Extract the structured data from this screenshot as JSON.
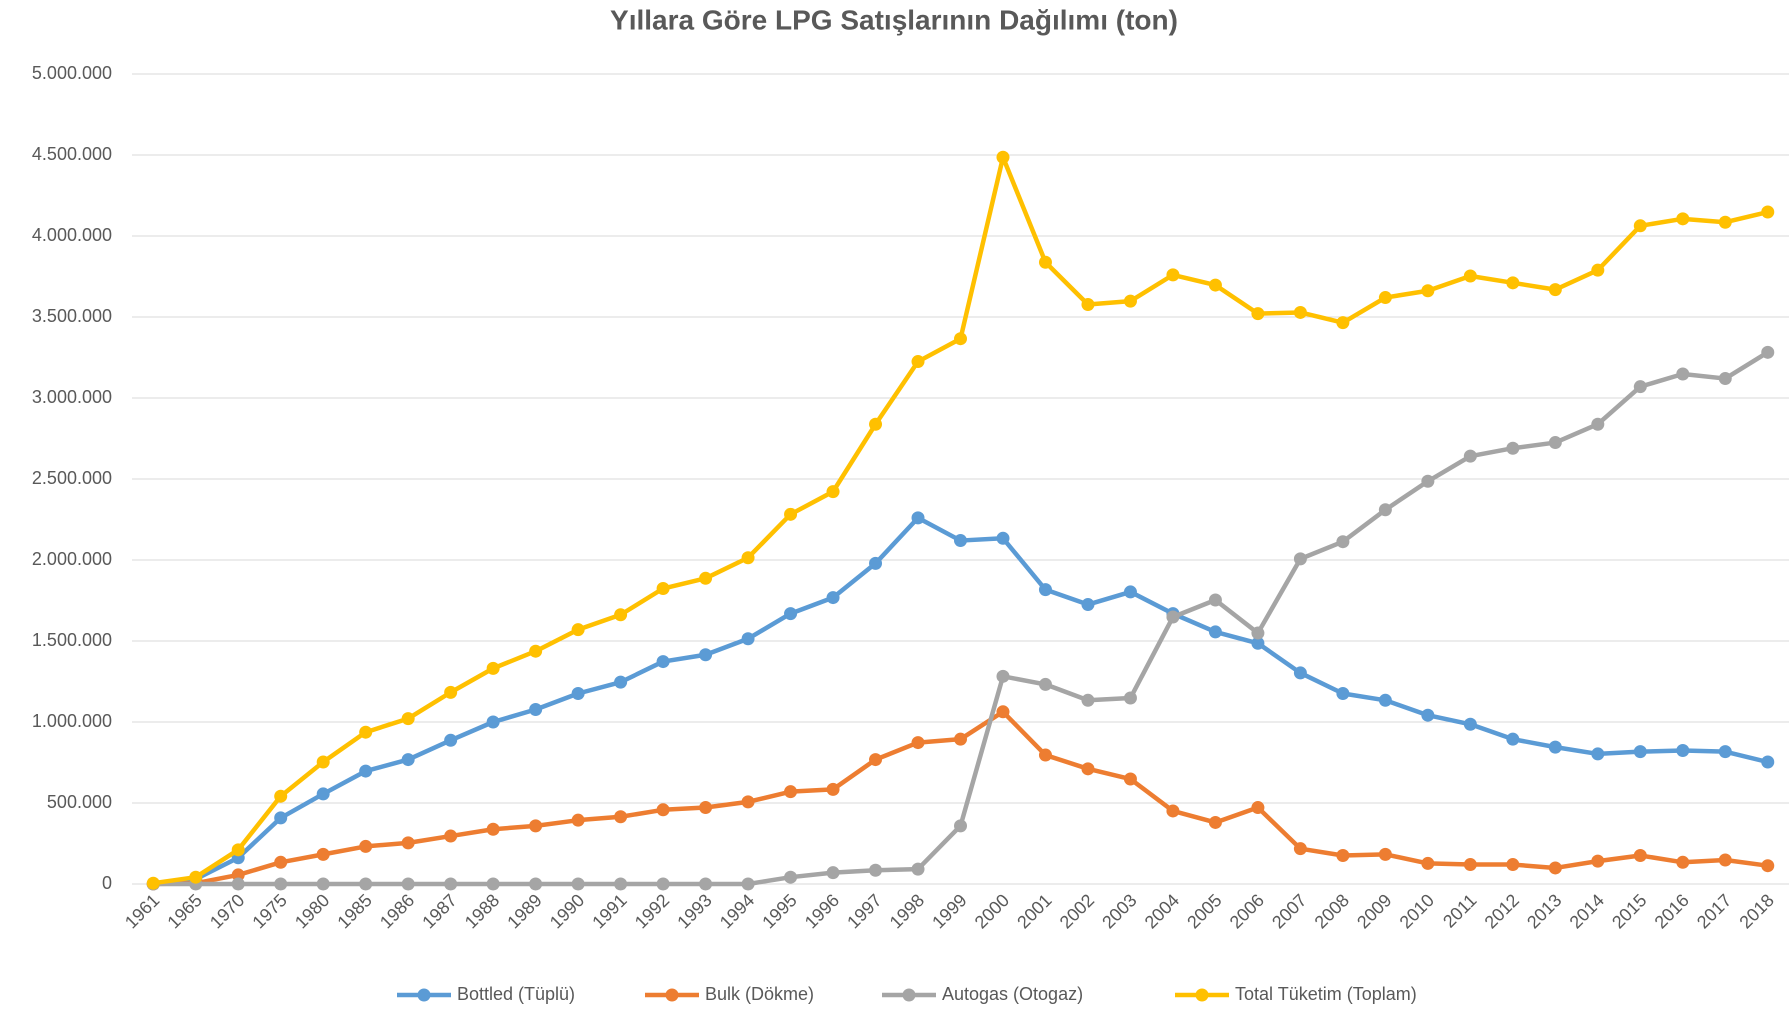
{
  "chart_data": {
    "type": "line",
    "title": "Yıllara Göre LPG Satışlarının Dağılımı (ton)",
    "categories": [
      "1961",
      "1965",
      "1970",
      "1975",
      "1980",
      "1985",
      "1986",
      "1987",
      "1988",
      "1989",
      "1990",
      "1991",
      "1992",
      "1993",
      "1994",
      "1995",
      "1996",
      "1997",
      "1998",
      "1999",
      "2000",
      "2001",
      "2002",
      "2003",
      "2004",
      "2005",
      "2006",
      "2007",
      "2008",
      "2009",
      "2010",
      "2011",
      "2012",
      "2013",
      "2014",
      "2015",
      "2016",
      "2017",
      "2018"
    ],
    "series": [
      {
        "name": "Bottled (Tüplü)",
        "color": "#5b9bd5",
        "values": [
          0,
          30000,
          162000,
          408000,
          556000,
          697000,
          768000,
          887000,
          1000000,
          1077000,
          1176000,
          1246000,
          1373000,
          1415000,
          1514000,
          1669000,
          1768000,
          1979000,
          2260000,
          2120000,
          2134000,
          1817000,
          1725000,
          1803000,
          1669000,
          1556000,
          1486000,
          1303000,
          1176000,
          1134000,
          1042000,
          986000,
          894000,
          845000,
          803000,
          817000,
          824000,
          817000,
          753000
        ]
      },
      {
        "name": "Bulk (Dökme)",
        "color": "#ed7d31",
        "values": [
          0,
          5000,
          56000,
          134000,
          183000,
          232000,
          254000,
          296000,
          338000,
          359000,
          394000,
          415000,
          458000,
          472000,
          507000,
          570000,
          584000,
          768000,
          873000,
          894000,
          1063000,
          796000,
          711000,
          648000,
          451000,
          380000,
          472000,
          218000,
          176000,
          183000,
          127000,
          120000,
          120000,
          99000,
          141000,
          176000,
          134000,
          148000,
          113000
        ]
      },
      {
        "name": "Autogas (Otogaz)",
        "color": "#a5a5a5",
        "values": [
          0,
          0,
          0,
          0,
          0,
          0,
          0,
          0,
          0,
          0,
          0,
          0,
          0,
          0,
          0,
          42000,
          70000,
          85000,
          92000,
          359000,
          1282000,
          1232000,
          1134000,
          1148000,
          1648000,
          1753000,
          1549000,
          2007000,
          2113000,
          2310000,
          2486000,
          2641000,
          2690000,
          2725000,
          2838000,
          3070000,
          3148000,
          3120000,
          3282000
        ]
      },
      {
        "name": "Total Tüketim (Toplam)",
        "color": "#ffc000",
        "values": [
          5000,
          42000,
          211000,
          542000,
          753000,
          937000,
          1021000,
          1183000,
          1331000,
          1437000,
          1570000,
          1662000,
          1824000,
          1887000,
          2014000,
          2282000,
          2422000,
          2838000,
          3225000,
          3366000,
          4486000,
          3838000,
          3577000,
          3598000,
          3760000,
          3697000,
          3521000,
          3528000,
          3465000,
          3620000,
          3662000,
          3753000,
          3711000,
          3669000,
          3789000,
          4063000,
          4106000,
          4085000,
          4148000
        ]
      }
    ],
    "ylim": [
      0,
      5000000
    ],
    "yticks": [
      0,
      {
        "value": 500000,
        "label": "500.000"
      },
      {
        "value": 1000000,
        "label": "1.000.000"
      },
      {
        "value": 1500000,
        "label": "1.500.000"
      },
      {
        "value": 2000000,
        "label": "2.000.000"
      },
      {
        "value": 2500000,
        "label": "2.500.000"
      },
      {
        "value": 3000000,
        "label": "3.000.000"
      },
      {
        "value": 3500000,
        "label": "3.500.000"
      },
      {
        "value": 4000000,
        "label": "4.000.000"
      },
      {
        "value": 4500000,
        "label": "4.500.000"
      },
      {
        "value": 5000000,
        "label": "5.000.000"
      }
    ],
    "grid": true,
    "legend": "bottom"
  }
}
